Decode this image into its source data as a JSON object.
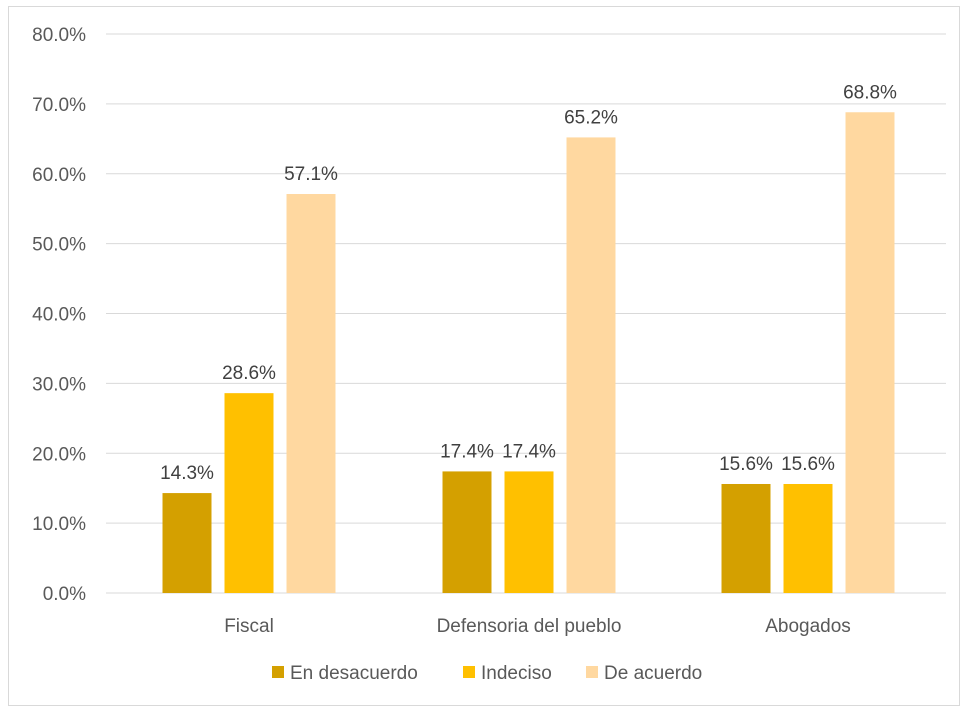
{
  "chart_data": {
    "type": "bar",
    "categories": [
      "Fiscal",
      "Defensoria del pueblo",
      "Abogados"
    ],
    "series": [
      {
        "name": "En desacuerdo",
        "values": [
          14.3,
          17.4,
          15.6
        ],
        "labels": [
          "14.3%",
          "17.4%",
          "15.6%"
        ],
        "color": "#d4a000"
      },
      {
        "name": "Indeciso",
        "values": [
          28.6,
          17.4,
          15.6
        ],
        "labels": [
          "28.6%",
          "17.4%",
          "15.6%"
        ],
        "color": "#ffc000"
      },
      {
        "name": "De acuerdo",
        "values": [
          57.1,
          65.2,
          68.8
        ],
        "labels": [
          "57.1%",
          "65.2%",
          "68.8%"
        ],
        "color": "#ffd8a0"
      }
    ],
    "yticks": [
      "0.0%",
      "10.0%",
      "20.0%",
      "30.0%",
      "40.0%",
      "50.0%",
      "60.0%",
      "70.0%",
      "80.0%"
    ],
    "ylim": [
      0,
      80
    ],
    "grid": true,
    "legend_position": "bottom"
  }
}
